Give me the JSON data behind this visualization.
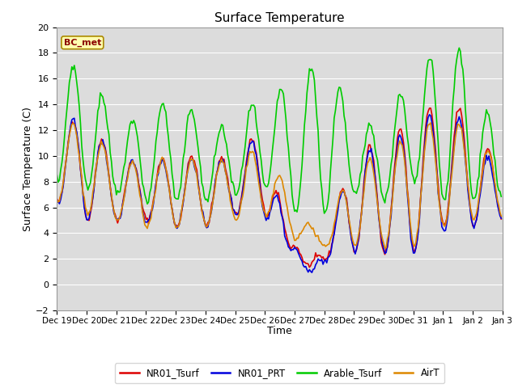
{
  "title": "Surface Temperature",
  "xlabel": "Time",
  "ylabel": "Surface Temperature (C)",
  "ylim": [
    -2,
    20
  ],
  "yticks": [
    -2,
    0,
    2,
    4,
    6,
    8,
    10,
    12,
    14,
    16,
    18,
    20
  ],
  "bg_color": "#dcdcdc",
  "fig_color": "#ffffff",
  "annotation_text": "BC_met",
  "annotation_bg": "#ffffb0",
  "annotation_fg": "#8b0000",
  "lines": {
    "NR01_Tsurf": {
      "color": "#dd0000",
      "lw": 1.2
    },
    "NR01_PRT": {
      "color": "#0000dd",
      "lw": 1.2
    },
    "Arable_Tsurf": {
      "color": "#00cc00",
      "lw": 1.2
    },
    "AirT": {
      "color": "#dd8800",
      "lw": 1.2
    }
  },
  "x_tick_labels": [
    "Dec 19",
    "Dec 20",
    "Dec 21",
    "Dec 22",
    "Dec 23",
    "Dec 24",
    "Dec 25",
    "Dec 26",
    "Dec 27",
    "Dec 28",
    "Dec 29",
    "Dec 30",
    "Dec 31",
    "Jan 1",
    "Jan 2",
    "Jan 3"
  ],
  "seed": 42
}
